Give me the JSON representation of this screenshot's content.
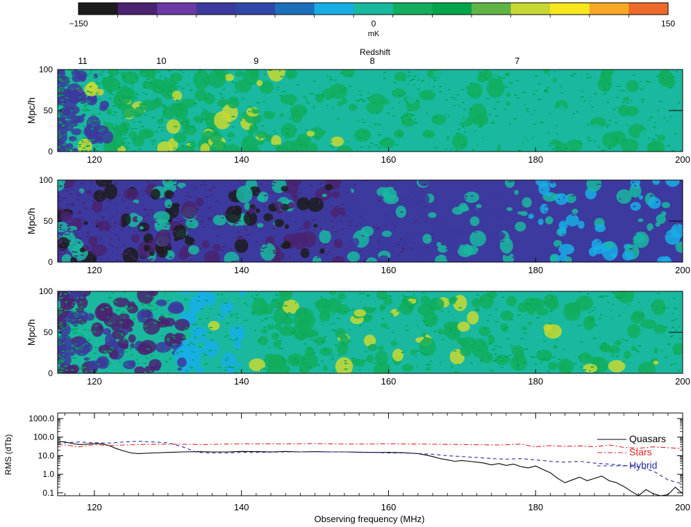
{
  "colorbar": {
    "colors": [
      "#1c1c1c",
      "#4a2371",
      "#6b3aa6",
      "#3c3a9e",
      "#2f47a6",
      "#1a6fb8",
      "#17aee6",
      "#19b89f",
      "#12ad5d",
      "#00a54a",
      "#5fb445",
      "#c8d833",
      "#f6e61e",
      "#f8a923",
      "#ee6a2a"
    ],
    "min_label": "−150",
    "zero_label": "0",
    "max_label": "150",
    "unit": "mK"
  },
  "redshift_axis": {
    "title": "Redshift",
    "ticks": [
      {
        "z": "11",
        "freq": 118.4
      },
      {
        "z": "10",
        "freq": 129.1
      },
      {
        "z": "9",
        "freq": 142.0
      },
      {
        "z": "8",
        "freq": 157.8
      },
      {
        "z": "7",
        "freq": 177.5
      }
    ]
  },
  "maps": {
    "ylabel": "Mpc/h",
    "y_ticks": [
      "100",
      "50",
      "0"
    ],
    "x_ticks": [
      "120",
      "140",
      "160",
      "180",
      "200"
    ],
    "x_range": [
      115,
      200
    ],
    "panels": [
      {
        "mean_color": "#19b89f"
      },
      {
        "mean_color": "#3c3a9e"
      },
      {
        "mean_color": "#19b89f"
      }
    ]
  },
  "chart_data": {
    "type": "line",
    "xlabel": "Observing frequency (MHz)",
    "ylabel": "RMS (dTb)",
    "xlim": [
      115,
      200
    ],
    "ylim": [
      0.07,
      2000
    ],
    "y_scale": "log",
    "x_ticks": [
      "120",
      "140",
      "160",
      "180",
      "200"
    ],
    "y_ticks": [
      "1000.0",
      "100.0",
      "10.0",
      "1.0",
      "0.1"
    ],
    "legend_position": "right",
    "series": [
      {
        "name": "Quasars",
        "color": "#000000",
        "dash": "solid",
        "x": [
          115,
          116,
          117,
          118,
          119,
          120,
          121,
          122,
          123,
          124,
          125,
          126,
          128,
          130,
          132,
          134,
          136,
          138,
          140,
          142,
          144,
          146,
          148,
          150,
          152,
          154,
          156,
          158,
          160,
          162,
          164,
          165,
          166,
          167,
          168,
          169,
          170,
          171,
          172,
          173,
          174,
          175,
          176,
          177,
          178,
          179,
          180,
          181,
          182,
          183,
          184,
          185,
          186,
          187,
          188,
          189,
          190,
          191,
          192,
          193,
          194,
          195,
          196,
          197,
          198,
          199,
          200
        ],
        "y": [
          60,
          55,
          45,
          40,
          42,
          45,
          44,
          35,
          24,
          18,
          14,
          13,
          14,
          15,
          16,
          16.5,
          16,
          16,
          17,
          16.5,
          16,
          17,
          16,
          16.5,
          16,
          16,
          15.5,
          15,
          15,
          14.5,
          13,
          11,
          9,
          7,
          6,
          5,
          5.5,
          5,
          4.5,
          4,
          3.2,
          3.8,
          3,
          3.5,
          2.6,
          2.2,
          2.8,
          1.8,
          1.2,
          0.6,
          0.35,
          0.5,
          0.7,
          0.45,
          0.6,
          0.8,
          0.45,
          0.35,
          0.22,
          0.12,
          0.07,
          0.15,
          0.09,
          0.07,
          0.08,
          0.2,
          0.09
        ]
      },
      {
        "name": "Stars",
        "color": "#dd2222",
        "dash": "7,3,2,3",
        "x": [
          115,
          116,
          118,
          120,
          122,
          124,
          126,
          130,
          135,
          140,
          145,
          150,
          155,
          160,
          165,
          170,
          175,
          178,
          180,
          182,
          184,
          186,
          188,
          190,
          192,
          194,
          196,
          198,
          200
        ],
        "y": [
          40,
          38,
          30,
          40,
          35,
          38,
          40,
          42,
          40,
          44,
          43,
          45,
          42,
          44,
          42,
          40,
          38,
          42,
          30,
          35,
          32,
          34,
          30,
          38,
          28,
          25,
          30,
          27,
          24
        ]
      },
      {
        "name": "Hybrid",
        "color": "#2a2aa0",
        "dash": "5,4",
        "x": [
          115,
          116,
          118,
          120,
          122,
          124,
          126,
          128,
          130,
          132,
          134,
          136,
          138,
          140,
          142,
          144,
          146,
          148,
          150,
          152,
          154,
          156,
          158,
          160,
          162,
          164,
          166,
          168,
          170,
          172,
          174,
          176,
          178,
          180,
          182,
          184,
          186,
          188,
          190,
          192,
          194,
          196,
          198,
          200
        ],
        "y": [
          45,
          50,
          55,
          50,
          48,
          55,
          60,
          55,
          50,
          30,
          15,
          14,
          14,
          15,
          15,
          15.5,
          16,
          16,
          16.5,
          16,
          16,
          15,
          15,
          14,
          14,
          13,
          12,
          10,
          9,
          8,
          7,
          6.5,
          7,
          6,
          5,
          4.5,
          5,
          4,
          3.5,
          3,
          2.5,
          1.5,
          0.5,
          0.3
        ]
      }
    ]
  }
}
